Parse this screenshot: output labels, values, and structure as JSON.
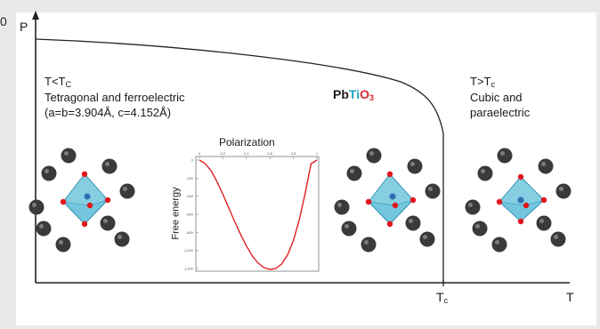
{
  "edge_digit": "0",
  "axes": {
    "y_label": "P",
    "x_label": "T",
    "tc_tick": {
      "main": "T",
      "sub": "c"
    }
  },
  "left_phase": {
    "condition": {
      "a": "T<T",
      "sub": "C"
    },
    "line1": "Tetragonal and ferroelectric",
    "line2": "(a=b=3.904Å, c=4.152Å)"
  },
  "right_phase": {
    "condition": {
      "a": "T>T",
      "sub": "c"
    },
    "line1": "Cubic and",
    "line2": "paraelectric"
  },
  "formula": {
    "pb": "Pb",
    "ti": "Ti",
    "o": "O",
    "sub": "3"
  },
  "inset": {
    "title": "Polarization",
    "ylabel": "Free energy",
    "x_ticks": [
      "0",
      "0.2",
      "0.4",
      "0.6",
      "0.8",
      "1"
    ],
    "y_ticks": [
      "0",
      "-200",
      "-400",
      "-600",
      "-800",
      "-1,000",
      "-1,200"
    ],
    "curve_points": [
      [
        0,
        0
      ],
      [
        0.05,
        -40
      ],
      [
        0.1,
        -120
      ],
      [
        0.15,
        -240
      ],
      [
        0.2,
        -380
      ],
      [
        0.25,
        -530
      ],
      [
        0.3,
        -680
      ],
      [
        0.35,
        -820
      ],
      [
        0.4,
        -950
      ],
      [
        0.45,
        -1060
      ],
      [
        0.5,
        -1140
      ],
      [
        0.55,
        -1190
      ],
      [
        0.6,
        -1210
      ],
      [
        0.65,
        -1200
      ],
      [
        0.7,
        -1150
      ],
      [
        0.75,
        -1050
      ],
      [
        0.8,
        -890
      ],
      [
        0.85,
        -660
      ],
      [
        0.9,
        -370
      ],
      [
        0.95,
        -40
      ],
      [
        1,
        0
      ]
    ]
  },
  "colors": {
    "axis": "#222222",
    "curve": "#e02020",
    "octahedron": "#5bbcd8",
    "octahedron_edge": "#2f8fb0",
    "oxygen": "#e3141b",
    "lead": "#3a3a3a"
  }
}
